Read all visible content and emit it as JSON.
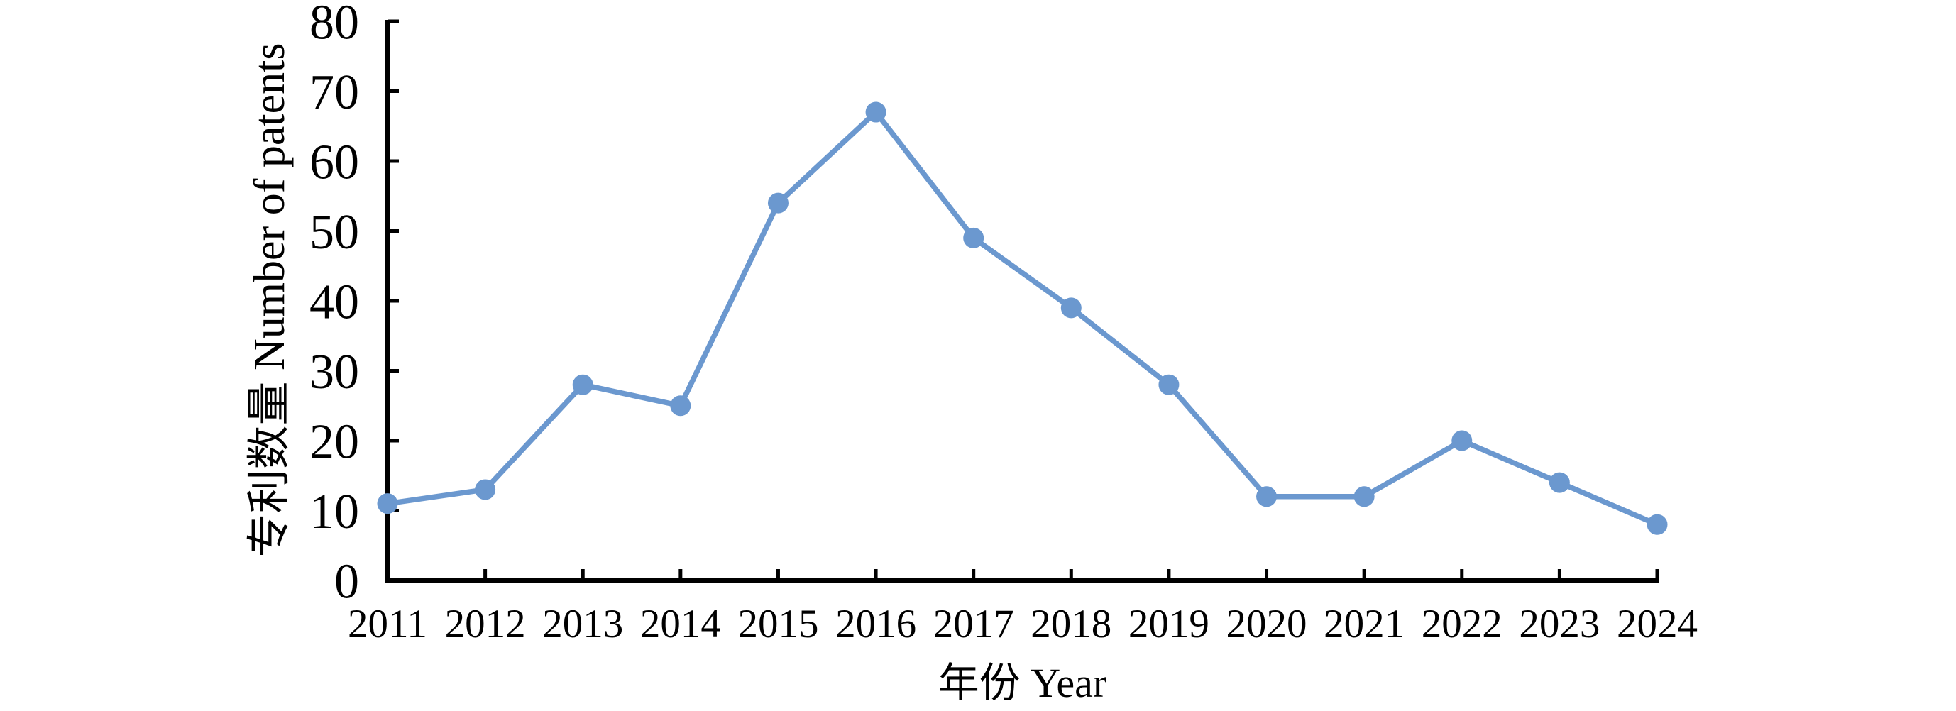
{
  "figure": {
    "description_visible_text_only": true
  },
  "chart_data": {
    "type": "line",
    "title": "",
    "categories": [
      "2011",
      "2012",
      "2013",
      "2014",
      "2015",
      "2016",
      "2017",
      "2018",
      "2019",
      "2020",
      "2021",
      "2022",
      "2023",
      "2024"
    ],
    "series": [
      {
        "name": "专利数量 Number of patents",
        "values": [
          11,
          13,
          28,
          25,
          54,
          67,
          49,
          39,
          28,
          12,
          12,
          20,
          14,
          8
        ]
      }
    ],
    "xlabel": "年份 Year",
    "ylabel": "专利数量 Number of patents",
    "ylim": [
      0,
      80
    ],
    "ytick_interval": 10,
    "yticks": [
      0,
      10,
      20,
      30,
      40,
      50,
      60,
      70,
      80
    ],
    "grid": false,
    "legend_position": "none",
    "marker": "circle",
    "line_color": "#6B98CF",
    "marker_color": "#6B98CF",
    "axis_color": "#000000",
    "text_color": "#000000",
    "background_color": "#ffffff"
  }
}
